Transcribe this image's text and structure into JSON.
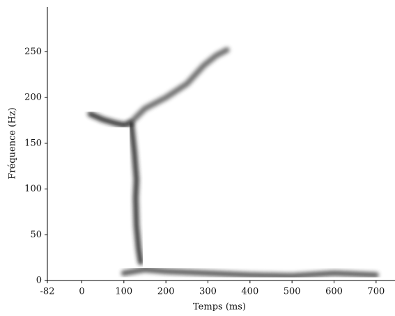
{
  "chart_data": {
    "type": "spectrogram",
    "x_label": "Temps (ms)",
    "y_label": "Fréquence (Hz)",
    "xlim": [
      -82,
      745
    ],
    "ylim": [
      0,
      299
    ],
    "xticks": [
      -82,
      0,
      100,
      200,
      300,
      400,
      500,
      600,
      700
    ],
    "yticks": [
      0,
      50,
      100,
      150,
      200,
      250
    ],
    "series": [
      {
        "color": "#1a1a1a",
        "x": [
          20,
          50,
          80,
          100,
          115
        ],
        "values": [
          182,
          176,
          172,
          170,
          172
        ]
      },
      {
        "color": "#555555",
        "x": [
          115,
          150,
          200,
          250,
          290,
          320,
          345
        ],
        "values": [
          172,
          188,
          200,
          215,
          235,
          246,
          252
        ]
      },
      {
        "color": "#222222",
        "x": [
          118,
          125,
          130,
          128,
          130,
          135,
          140
        ],
        "values": [
          170,
          140,
          110,
          90,
          60,
          35,
          20
        ]
      },
      {
        "color": "#444444",
        "x": [
          100,
          150,
          200,
          300,
          400,
          500,
          600,
          700
        ],
        "values": [
          8,
          12,
          10,
          8,
          6,
          5,
          8,
          6
        ]
      }
    ]
  }
}
